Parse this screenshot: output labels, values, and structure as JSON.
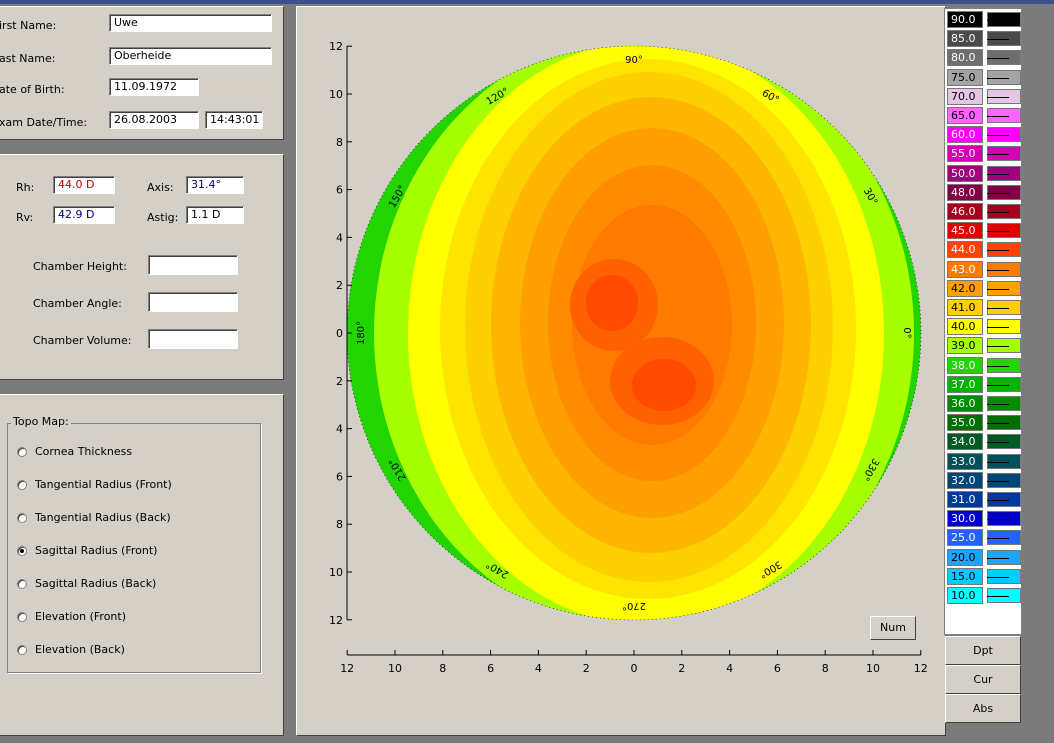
{
  "patient": {
    "first_name_label": "irst Name:",
    "first_name": "Uwe",
    "last_name_label": "ast Name:",
    "last_name": "Oberheide",
    "dob_label": "ate of Birth:",
    "dob": "11.09.1972",
    "exam_label": "xam Date/Time:",
    "exam_date": "26.08.2003",
    "exam_time": "14:43:01"
  },
  "measurements": {
    "rh_label": "Rh:",
    "rh_value": "44.0 D",
    "rv_label": "Rv:",
    "rv_value": "42.9 D",
    "axis_label": "Axis:",
    "axis_value": "31.4°",
    "astig_label": "Astig:",
    "astig_value": "1.1 D",
    "chamber_height_label": "Chamber Height:",
    "chamber_height_value": "",
    "chamber_angle_label": "Chamber Angle:",
    "chamber_angle_value": "",
    "chamber_volume_label": "Chamber Volume:",
    "chamber_volume_value": ""
  },
  "topo": {
    "title": "Topo Map:",
    "options": [
      {
        "label": "Cornea Thickness",
        "selected": false
      },
      {
        "label": "Tangential Radius (Front)",
        "selected": false
      },
      {
        "label": "Tangential Radius (Back)",
        "selected": false
      },
      {
        "label": "Sagittal Radius (Front)",
        "selected": true
      },
      {
        "label": "Sagittal Radius (Back)",
        "selected": false
      },
      {
        "label": "Elevation (Front)",
        "selected": false
      },
      {
        "label": "Elevation (Back)",
        "selected": false
      }
    ]
  },
  "map": {
    "y_ticks": [
      "12",
      "10",
      "8",
      "6",
      "4",
      "2",
      "0",
      "2",
      "4",
      "6",
      "8",
      "10",
      "12"
    ],
    "x_ticks": [
      "12",
      "10",
      "8",
      "6",
      "4",
      "2",
      "0",
      "2",
      "4",
      "6",
      "8",
      "10",
      "12"
    ],
    "angle_labels": [
      "0°",
      "30°",
      "60°",
      "90°",
      "120°",
      "150°",
      "180°",
      "210°",
      "240°",
      "270°",
      "300°",
      "330°"
    ],
    "num_button": "Num"
  },
  "scale": {
    "entries": [
      {
        "label": "90.0",
        "color": "#000000"
      },
      {
        "label": "85.0",
        "color": "#4a4a4a"
      },
      {
        "label": "80.0",
        "color": "#6e6e6e"
      },
      {
        "label": "75.0",
        "color": "#a4a4a4"
      },
      {
        "label": "70.0",
        "color": "#e6c6e6"
      },
      {
        "label": "65.0",
        "color": "#ff66ff"
      },
      {
        "label": "60.0",
        "color": "#ff00ff"
      },
      {
        "label": "55.0",
        "color": "#d400b4"
      },
      {
        "label": "50.0",
        "color": "#a0007a"
      },
      {
        "label": "48.0",
        "color": "#820046"
      },
      {
        "label": "46.0",
        "color": "#a6001c"
      },
      {
        "label": "45.0",
        "color": "#e00000"
      },
      {
        "label": "44.0",
        "color": "#ff4200"
      },
      {
        "label": "43.0",
        "color": "#ff7a00"
      },
      {
        "label": "42.0",
        "color": "#ffa000"
      },
      {
        "label": "41.0",
        "color": "#ffd000"
      },
      {
        "label": "40.0",
        "color": "#ffff00"
      },
      {
        "label": "39.0",
        "color": "#a6ff00"
      },
      {
        "label": "38.0",
        "color": "#22d400"
      },
      {
        "label": "37.0",
        "color": "#00b400"
      },
      {
        "label": "36.0",
        "color": "#008c00"
      },
      {
        "label": "35.0",
        "color": "#006e00"
      },
      {
        "label": "34.0",
        "color": "#005a22"
      },
      {
        "label": "33.0",
        "color": "#00505a"
      },
      {
        "label": "32.0",
        "color": "#00467a"
      },
      {
        "label": "31.0",
        "color": "#003a9c"
      },
      {
        "label": "30.0",
        "color": "#0000c8"
      },
      {
        "label": "25.0",
        "color": "#2262ff"
      },
      {
        "label": "20.0",
        "color": "#1aa6ff"
      },
      {
        "label": "15.0",
        "color": "#00ccff"
      },
      {
        "label": "10.0",
        "color": "#00ffff"
      }
    ],
    "buttons": [
      "Dpt",
      "Cur",
      "Abs"
    ]
  }
}
